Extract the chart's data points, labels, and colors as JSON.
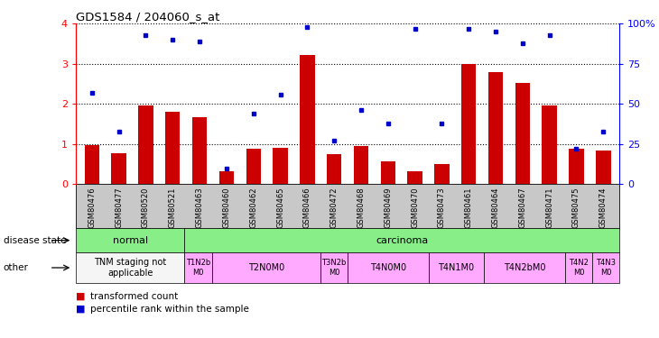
{
  "title": "GDS1584 / 204060_s_at",
  "samples": [
    "GSM80476",
    "GSM80477",
    "GSM80520",
    "GSM80521",
    "GSM80463",
    "GSM80460",
    "GSM80462",
    "GSM80465",
    "GSM80466",
    "GSM80472",
    "GSM80468",
    "GSM80469",
    "GSM80470",
    "GSM80473",
    "GSM80461",
    "GSM80464",
    "GSM80467",
    "GSM80471",
    "GSM80475",
    "GSM80474"
  ],
  "bar_values": [
    0.97,
    0.77,
    1.97,
    1.8,
    1.68,
    0.32,
    0.88,
    0.9,
    3.22,
    0.75,
    0.95,
    0.58,
    0.33,
    0.5,
    3.0,
    2.8,
    2.52,
    1.97,
    0.88,
    0.85
  ],
  "dot_values_pct": [
    57,
    33,
    93,
    90,
    89,
    10,
    44,
    56,
    98,
    27,
    46,
    38,
    97,
    38,
    97,
    95,
    88,
    93,
    22,
    33
  ],
  "bar_color": "#cc0000",
  "dot_color": "#0000cc",
  "ylim": [
    0,
    4
  ],
  "yticks": [
    0,
    1,
    2,
    3,
    4
  ],
  "y2ticks": [
    0,
    25,
    50,
    75,
    100
  ],
  "y2tick_labels": [
    "0",
    "25",
    "50",
    "75",
    "100%"
  ],
  "background_color": "#ffffff",
  "plot_bg_color": "#ffffff",
  "xtick_bg_color": "#c8c8c8",
  "grid_color": "#000000",
  "disease_state_label": "disease state",
  "other_label": "other",
  "disease_rows": [
    {
      "text": "normal",
      "start": 0,
      "end": 3,
      "color": "#88ee88"
    },
    {
      "text": "carcinoma",
      "start": 4,
      "end": 19,
      "color": "#88ee88"
    }
  ],
  "other_rows": [
    {
      "text": "TNM staging not\napplicable",
      "start": 0,
      "end": 3,
      "color": "#f5f5f5"
    },
    {
      "text": "T1N2b\nM0",
      "start": 4,
      "end": 4,
      "color": "#ffaaff"
    },
    {
      "text": "T2N0M0",
      "start": 5,
      "end": 8,
      "color": "#ffaaff"
    },
    {
      "text": "T3N2b\nM0",
      "start": 9,
      "end": 9,
      "color": "#ffaaff"
    },
    {
      "text": "T4N0M0",
      "start": 10,
      "end": 12,
      "color": "#ffaaff"
    },
    {
      "text": "T4N1M0",
      "start": 13,
      "end": 14,
      "color": "#ffaaff"
    },
    {
      "text": "T4N2bM0",
      "start": 15,
      "end": 17,
      "color": "#ffaaff"
    },
    {
      "text": "T4N2\nM0",
      "start": 18,
      "end": 18,
      "color": "#ffaaff"
    },
    {
      "text": "T4N3\nM0",
      "start": 19,
      "end": 19,
      "color": "#ffaaff"
    }
  ]
}
